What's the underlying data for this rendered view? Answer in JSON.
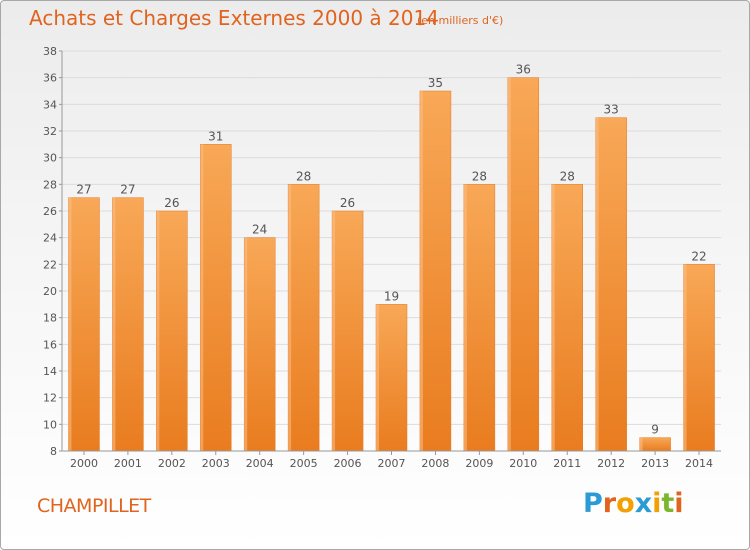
{
  "header": {
    "title": "Achats et Charges Externes 2000 à 2014",
    "subtitle": "(en milliers d'€)"
  },
  "footer": {
    "commune": "CHAMPILLET",
    "logo_text": "Proxiti",
    "logo_colors": [
      "#2b9bd6",
      "#e0641f",
      "#f2a100",
      "#2b9bd6",
      "#f2a100",
      "#7bb62d",
      "#e0641f"
    ]
  },
  "colors": {
    "bar_light": "#f8a857",
    "bar_dark": "#e97c1f",
    "label_text": "#555555",
    "title_text": "#e0641f"
  },
  "chart_data": {
    "type": "bar",
    "categories": [
      "2000",
      "2001",
      "2002",
      "2003",
      "2004",
      "2005",
      "2006",
      "2007",
      "2008",
      "2009",
      "2010",
      "2011",
      "2012",
      "2013",
      "2014"
    ],
    "values": [
      27,
      27,
      26,
      31,
      24,
      28,
      26,
      19,
      35,
      28,
      36,
      28,
      33,
      9,
      22
    ],
    "yticks": [
      8,
      10,
      12,
      14,
      16,
      18,
      20,
      22,
      24,
      26,
      28,
      30,
      32,
      34,
      36,
      38
    ],
    "ylim": [
      8,
      38
    ],
    "grid": true,
    "data_labels": true,
    "legend": false
  }
}
